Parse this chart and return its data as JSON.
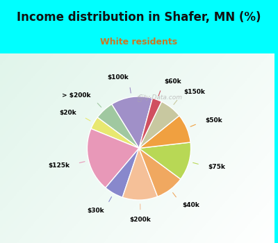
{
  "title": "Income distribution in Shafer, MN (%)",
  "subtitle": "White residents",
  "title_color": "#111111",
  "subtitle_color": "#cc7722",
  "background_cyan": "#00ffff",
  "watermark": "City-Data.com",
  "labels": [
    "$100k",
    "> $200k",
    "$20k",
    "$125k",
    "$30k",
    "$200k",
    "$40k",
    "$75k",
    "$50k",
    "$150k",
    "$60k"
  ],
  "values": [
    13,
    6,
    4,
    20,
    6,
    11,
    9,
    12,
    9,
    7,
    3
  ],
  "colors": [
    "#a090c8",
    "#a0c8a0",
    "#e8e870",
    "#e898b8",
    "#8888cc",
    "#f5c098",
    "#f0a860",
    "#b8d855",
    "#f0a040",
    "#c8c8a0",
    "#d05060"
  ],
  "startangle": 75
}
